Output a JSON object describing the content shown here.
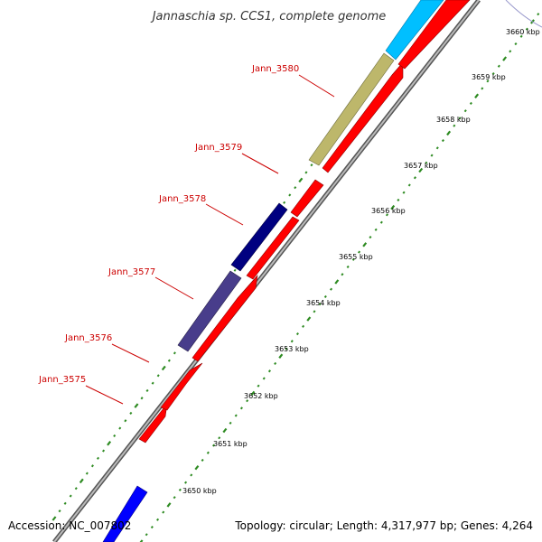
{
  "title": "Jannaschia sp. CCS1, complete genome",
  "accession": "Accession: NC_007802",
  "topology": "Topology: circular; Length: 4,317,977 bp; Genes: 4,264",
  "ticks": [
    "3650 kbp",
    "3651 kbp",
    "3652 kbp",
    "3653 kbp",
    "3654 kbp",
    "3655 kbp",
    "3656 kbp",
    "3657 kbp",
    "3658 kbp",
    "3659 kbp",
    "3660 kbp"
  ],
  "gene_labels": [
    "Jann_3575",
    "Jann_3576",
    "Jann_3577",
    "Jann_3578",
    "Jann_3579",
    "Jann_3580"
  ],
  "colors": {
    "gene_forward": "#ff0000",
    "gene_label": "#cc0000",
    "backbone": "#888888",
    "tick_marks": "#2e8b22",
    "feature_khaki": "#bdb76b",
    "feature_navy": "#000080",
    "feature_slate": "#483d8b",
    "feature_blue": "#0000ff",
    "feature_cyan": "#00bfff"
  }
}
